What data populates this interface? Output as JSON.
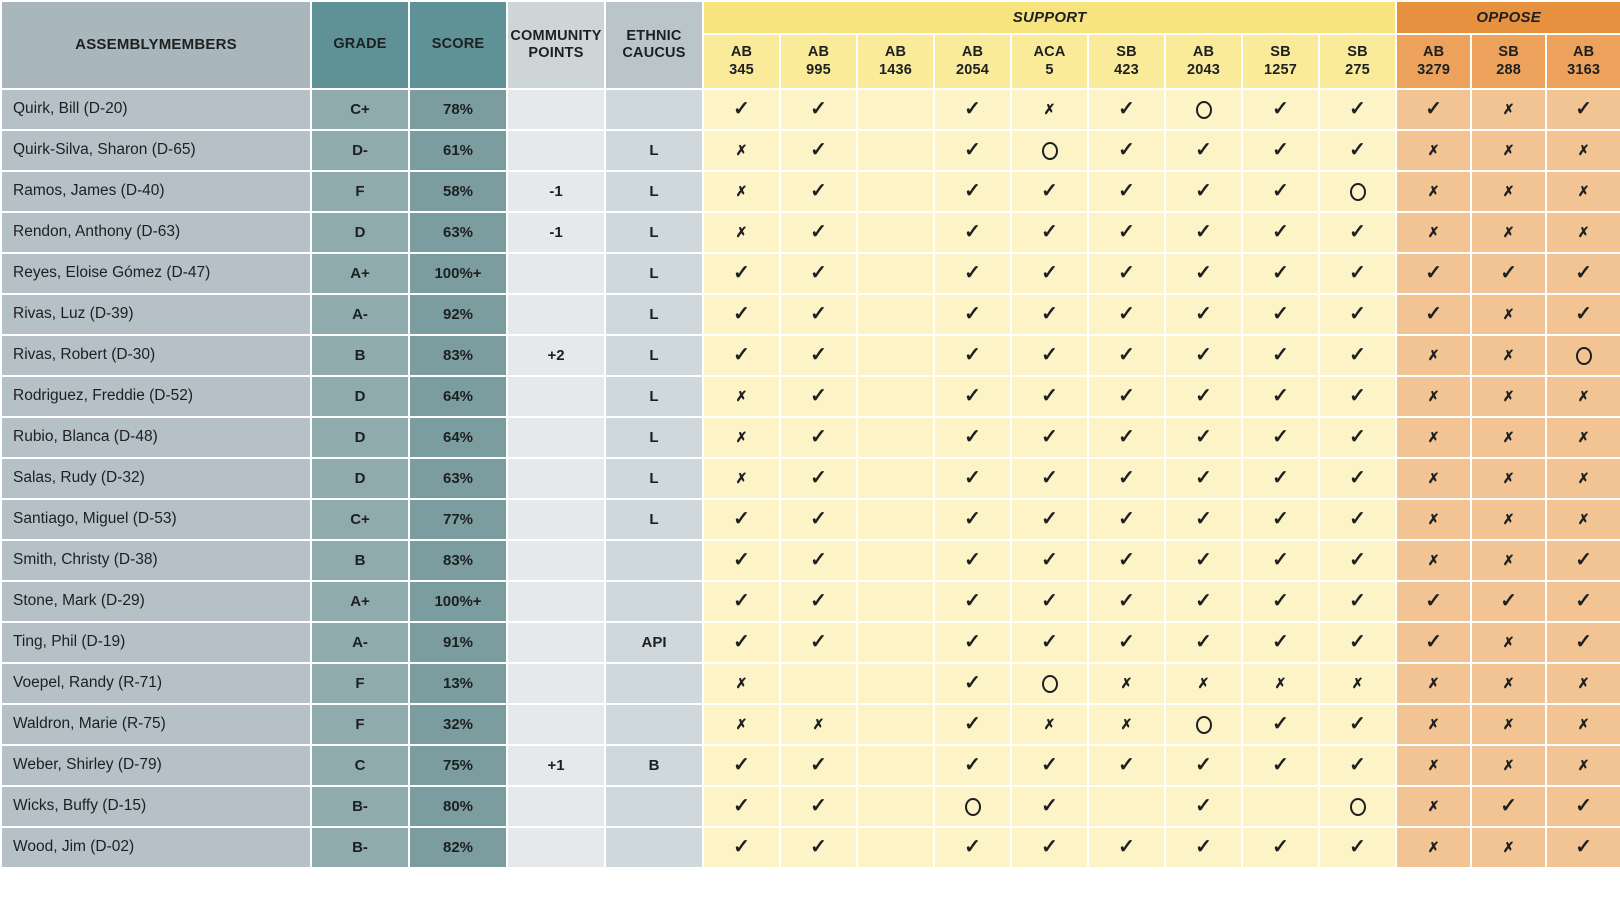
{
  "chart_data": {
    "type": "table",
    "column_headers": {
      "members": "ASSEMBLYMEMBERS",
      "grade": "GRADE",
      "score": "SCORE",
      "community": "COMMUNITY POINTS",
      "ethnic": "ETHNIC CAUCUS"
    },
    "support": {
      "label": "SUPPORT",
      "bills": [
        "AB 345",
        "AB 995",
        "AB 1436",
        "AB 2054",
        "ACA 5",
        "SB 423",
        "AB 2043",
        "SB 1257",
        "SB 275"
      ]
    },
    "oppose": {
      "label": "OPPOSE",
      "bills": [
        "AB 3279",
        "SB 288",
        "AB 3163"
      ]
    },
    "vote_mark_legend": {
      "check": "✓",
      "x": "✗",
      "circle": "○"
    },
    "rows": [
      {
        "name": "Quirk, Bill (D-20)",
        "grade": "C+",
        "score": "78%",
        "community": "",
        "ethnic": "",
        "votes": [
          "check",
          "check",
          "",
          "check",
          "x",
          "check",
          "circle",
          "check",
          "check",
          "check",
          "x",
          "check"
        ]
      },
      {
        "name": "Quirk-Silva, Sharon (D-65)",
        "grade": "D-",
        "score": "61%",
        "community": "",
        "ethnic": "L",
        "votes": [
          "x",
          "check",
          "",
          "check",
          "circle",
          "check",
          "check",
          "check",
          "check",
          "x",
          "x",
          "x"
        ]
      },
      {
        "name": "Ramos, James (D-40)",
        "grade": "F",
        "score": "58%",
        "community": "-1",
        "ethnic": "L",
        "votes": [
          "x",
          "check",
          "",
          "check",
          "check",
          "check",
          "check",
          "check",
          "circle",
          "x",
          "x",
          "x"
        ]
      },
      {
        "name": "Rendon, Anthony (D-63)",
        "grade": "D",
        "score": "63%",
        "community": "-1",
        "ethnic": "L",
        "votes": [
          "x",
          "check",
          "",
          "check",
          "check",
          "check",
          "check",
          "check",
          "check",
          "x",
          "x",
          "x"
        ]
      },
      {
        "name": "Reyes, Eloise Gómez (D-47)",
        "grade": "A+",
        "score": "100%+",
        "community": "",
        "ethnic": "L",
        "votes": [
          "check",
          "check",
          "",
          "check",
          "check",
          "check",
          "check",
          "check",
          "check",
          "check",
          "check",
          "check"
        ]
      },
      {
        "name": "Rivas, Luz (D-39)",
        "grade": "A-",
        "score": "92%",
        "community": "",
        "ethnic": "L",
        "votes": [
          "check",
          "check",
          "",
          "check",
          "check",
          "check",
          "check",
          "check",
          "check",
          "check",
          "x",
          "check"
        ]
      },
      {
        "name": "Rivas, Robert (D-30)",
        "grade": "B",
        "score": "83%",
        "community": "+2",
        "ethnic": "L",
        "votes": [
          "check",
          "check",
          "",
          "check",
          "check",
          "check",
          "check",
          "check",
          "check",
          "x",
          "x",
          "circle"
        ]
      },
      {
        "name": "Rodriguez, Freddie (D-52)",
        "grade": "D",
        "score": "64%",
        "community": "",
        "ethnic": "L",
        "votes": [
          "x",
          "check",
          "",
          "check",
          "check",
          "check",
          "check",
          "check",
          "check",
          "x",
          "x",
          "x"
        ]
      },
      {
        "name": "Rubio, Blanca (D-48)",
        "grade": "D",
        "score": "64%",
        "community": "",
        "ethnic": "L",
        "votes": [
          "x",
          "check",
          "",
          "check",
          "check",
          "check",
          "check",
          "check",
          "check",
          "x",
          "x",
          "x"
        ]
      },
      {
        "name": "Salas, Rudy (D-32)",
        "grade": "D",
        "score": "63%",
        "community": "",
        "ethnic": "L",
        "votes": [
          "x",
          "check",
          "",
          "check",
          "check",
          "check",
          "check",
          "check",
          "check",
          "x",
          "x",
          "x"
        ]
      },
      {
        "name": "Santiago, Miguel (D-53)",
        "grade": "C+",
        "score": "77%",
        "community": "",
        "ethnic": "L",
        "votes": [
          "check",
          "check",
          "",
          "check",
          "check",
          "check",
          "check",
          "check",
          "check",
          "x",
          "x",
          "x"
        ]
      },
      {
        "name": "Smith, Christy (D-38)",
        "grade": "B",
        "score": "83%",
        "community": "",
        "ethnic": "",
        "votes": [
          "check",
          "check",
          "",
          "check",
          "check",
          "check",
          "check",
          "check",
          "check",
          "x",
          "x",
          "check"
        ]
      },
      {
        "name": "Stone, Mark (D-29)",
        "grade": "A+",
        "score": "100%+",
        "community": "",
        "ethnic": "",
        "votes": [
          "check",
          "check",
          "",
          "check",
          "check",
          "check",
          "check",
          "check",
          "check",
          "check",
          "check",
          "check"
        ]
      },
      {
        "name": "Ting, Phil (D-19)",
        "grade": "A-",
        "score": "91%",
        "community": "",
        "ethnic": "API",
        "votes": [
          "check",
          "check",
          "",
          "check",
          "check",
          "check",
          "check",
          "check",
          "check",
          "check",
          "x",
          "check"
        ]
      },
      {
        "name": "Voepel, Randy (R-71)",
        "grade": "F",
        "score": "13%",
        "community": "",
        "ethnic": "",
        "votes": [
          "x",
          "",
          "",
          "check",
          "circle",
          "x",
          "x",
          "x",
          "x",
          "x",
          "x",
          "x"
        ]
      },
      {
        "name": "Waldron, Marie (R-75)",
        "grade": "F",
        "score": "32%",
        "community": "",
        "ethnic": "",
        "votes": [
          "x",
          "x",
          "",
          "check",
          "x",
          "x",
          "circle",
          "check",
          "check",
          "x",
          "x",
          "x"
        ]
      },
      {
        "name": "Weber, Shirley (D-79)",
        "grade": "C",
        "score": "75%",
        "community": "+1",
        "ethnic": "B",
        "votes": [
          "check",
          "check",
          "",
          "check",
          "check",
          "check",
          "check",
          "check",
          "check",
          "x",
          "x",
          "x"
        ]
      },
      {
        "name": "Wicks, Buffy (D-15)",
        "grade": "B-",
        "score": "80%",
        "community": "",
        "ethnic": "",
        "votes": [
          "check",
          "check",
          "",
          "circle",
          "check",
          "",
          "check",
          "",
          "circle",
          "x",
          "check",
          "check"
        ]
      },
      {
        "name": "Wood, Jim (D-02)",
        "grade": "B-",
        "score": "82%",
        "community": "",
        "ethnic": "",
        "votes": [
          "check",
          "check",
          "",
          "check",
          "check",
          "check",
          "check",
          "check",
          "check",
          "x",
          "x",
          "check"
        ]
      }
    ]
  },
  "colors": {
    "header_members_bg": "#a9b7bc",
    "header_grade_score_bg": "#5f9296",
    "header_community_bg": "#cdd5d7",
    "header_ethnic_bg": "#b9c5c9",
    "support_band_bg": "#f8e47e",
    "support_bill_bg": "#faeb9b",
    "support_cell_bg": "#fcf3c7",
    "oppose_band_bg": "#e6913f",
    "oppose_bill_bg": "#eda25c",
    "oppose_cell_bg": "#f3c493",
    "name_cell_bg": "#b5c1c6",
    "grade_cell_bg": "#8fabae",
    "score_cell_bg": "#7b9da0",
    "community_cell_bg": "#e5e9e9",
    "ethnic_cell_bg": "#cfd8da",
    "text": "#1d2021",
    "grid": "#ffffff"
  }
}
